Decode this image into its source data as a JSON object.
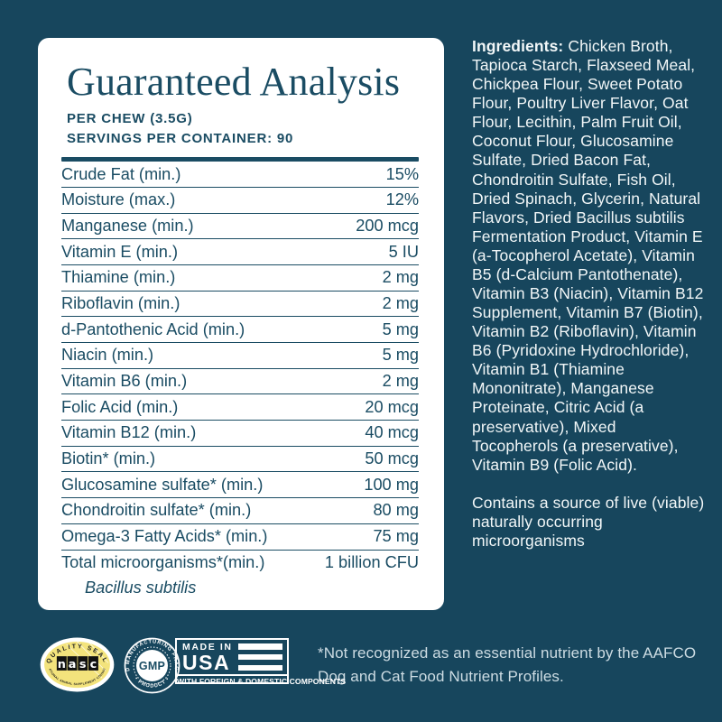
{
  "colors": {
    "background": "#17465D",
    "teal_text": "#1A4C63",
    "panel": "#FFFFFF",
    "seal_yellow": "#F3E37C"
  },
  "panel": {
    "title": "Guaranteed Analysis",
    "per_chew": "PER CHEW (3.5G)",
    "servings": "SERVINGS PER CONTAINER: 90",
    "rows": [
      {
        "label": "Crude Fat (min.)",
        "value": "15%"
      },
      {
        "label": "Moisture (max.)",
        "value": "12%"
      },
      {
        "label": "Manganese (min.)",
        "value": "200 mcg"
      },
      {
        "label": "Vitamin E (min.)",
        "value": "5 IU"
      },
      {
        "label": "Thiamine (min.)",
        "value": "2 mg"
      },
      {
        "label": "Riboflavin (min.)",
        "value": "2 mg"
      },
      {
        "label": "d-Pantothenic Acid (min.)",
        "value": "5 mg"
      },
      {
        "label": "Niacin (min.)",
        "value": "5 mg"
      },
      {
        "label": "Vitamin B6 (min.)",
        "value": "2 mg"
      },
      {
        "label": "Folic Acid (min.)",
        "value": "20 mcg"
      },
      {
        "label": "Vitamin B12 (min.)",
        "value": "40 mcg"
      },
      {
        "label": "Biotin* (min.)",
        "value": "50 mcg"
      },
      {
        "label": "Glucosamine sulfate* (min.)",
        "value": "100 mg"
      },
      {
        "label": "Chondroitin sulfate* (min.)",
        "value": "80 mg"
      },
      {
        "label": "Omega-3 Fatty Acids* (min.)",
        "value": "75 mg"
      },
      {
        "label": "Total microorganisms*(min.)",
        "value": "1 billion CFU"
      }
    ],
    "total_sub": "Bacillus subtilis"
  },
  "ingredients": {
    "label": "Ingredients:",
    "text": "Chicken Broth, Tapioca Starch, Flaxseed Meal, Chickpea Flour, Sweet Potato Flour, Poultry Liver Flavor, Oat Flour, Lecithin, Palm Fruit Oil, Coconut Flour, Glucosamine Sulfate, Dried Bacon Fat, Chondroitin Sulfate, Fish Oil, Dried Spinach, Glycerin, Natural Flavors, Dried Bacillus subtilis Fermentation Product, Vitamin E (a-Tocopherol Acetate), Vitamin B5 (d-Calcium Pantothenate), Vitamin B3 (Niacin), Vitamin B12 Supplement, Vitamin B7 (Biotin), Vitamin B2 (Riboflavin), Vitamin B6 (Pyridoxine Hydrochloride), Vitamin B1 (Thiamine Mononitrate), Manganese Proteinate, Citric Acid (a preservative), Mixed Tocopherols (a preservative), Vitamin B9 (Folic Acid)."
  },
  "contains_note": "Contains a source of live (viable) naturally occurring microorganisms",
  "footnote": "*Not recognized as an essential nutrient by the AAFCO Dog and Cat Food Nutrient Profiles.",
  "seals": {
    "nasc": {
      "top": "QUALITY SEAL",
      "letters": [
        "n",
        "a",
        "s",
        "c"
      ],
      "bottom": "NATIONAL ANIMAL SUPPLEMENT COUNCIL"
    },
    "gmp": {
      "top": "GOOD MANUFACTURING PRACTICE",
      "center": "GMP",
      "bottom": "• PRODUCT •"
    },
    "usa": {
      "made_in": "MADE IN",
      "usa": "USA",
      "strip": "WITH FOREIGN & DOMESTIC COMPONENTS"
    }
  }
}
